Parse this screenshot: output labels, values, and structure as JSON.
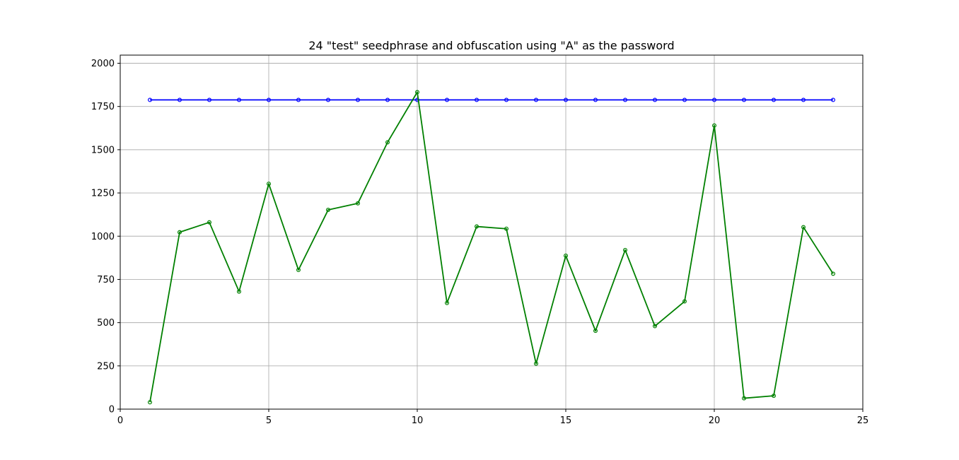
{
  "chart_data": {
    "type": "line",
    "title": "24 \"test\" seedphrase and obfuscation using \"A\" as the password",
    "xlabel": "",
    "ylabel": "",
    "xlim": [
      0,
      25
    ],
    "ylim": [
      0,
      2047
    ],
    "x_ticks": [
      0,
      5,
      10,
      15,
      20,
      25
    ],
    "y_ticks": [
      0,
      250,
      500,
      750,
      1000,
      1250,
      1500,
      1750,
      2000
    ],
    "grid": true,
    "x": [
      1,
      2,
      3,
      4,
      5,
      6,
      7,
      8,
      9,
      10,
      11,
      12,
      13,
      14,
      15,
      16,
      17,
      18,
      19,
      20,
      21,
      22,
      23,
      24
    ],
    "series": [
      {
        "color": "#0000ff",
        "marker": "circle-open",
        "values": [
          1788,
          1788,
          1788,
          1788,
          1788,
          1788,
          1788,
          1788,
          1788,
          1788,
          1788,
          1788,
          1788,
          1788,
          1788,
          1788,
          1788,
          1788,
          1788,
          1788,
          1788,
          1788,
          1788,
          1788
        ]
      },
      {
        "color": "#008000",
        "marker": "circle-open",
        "values": [
          40,
          1023,
          1080,
          680,
          1303,
          805,
          1152,
          1190,
          1543,
          1833,
          614,
          1056,
          1043,
          263,
          887,
          453,
          920,
          480,
          623,
          1640,
          63,
          77,
          1052,
          783
        ]
      }
    ]
  }
}
